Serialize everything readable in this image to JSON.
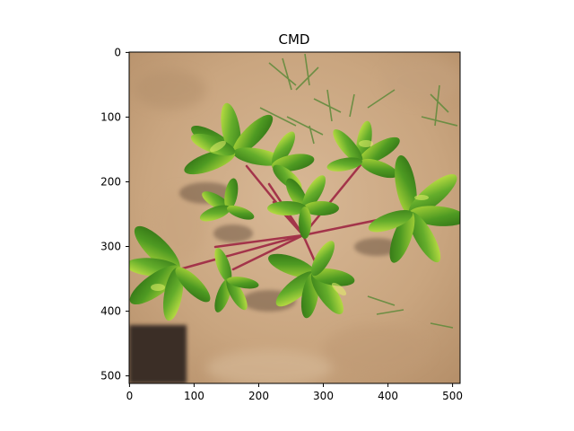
{
  "figure": {
    "title": "CMD",
    "image_description": "Top-down photo of a young cassava plant on sandy soil showing yellow-green mosaic leaf symptoms, with reddish petioles, small grass weeds and a dark shadow in the lower left.",
    "x_axis": {
      "ticks": [
        "0",
        "100",
        "200",
        "300",
        "400",
        "500"
      ]
    },
    "y_axis": {
      "ticks": [
        "0",
        "100",
        "200",
        "300",
        "400",
        "500"
      ]
    },
    "extent": [
      0,
      512,
      512,
      0
    ]
  }
}
